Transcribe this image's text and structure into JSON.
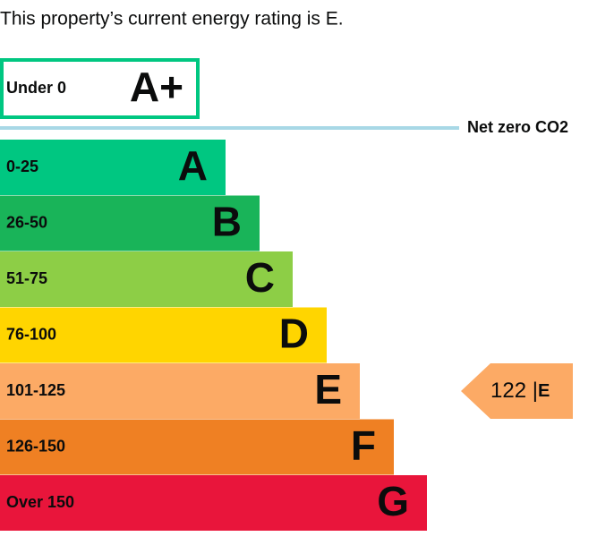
{
  "intro": "This property’s current energy rating is E.",
  "top_band": {
    "range": "Under 0",
    "letter": "A+"
  },
  "net_zero": "Net zero CO2",
  "bands": [
    {
      "range": "0-25",
      "letter": "A"
    },
    {
      "range": "26-50",
      "letter": "B"
    },
    {
      "range": "51-75",
      "letter": "C"
    },
    {
      "range": "76-100",
      "letter": "D"
    },
    {
      "range": "101-125",
      "letter": "E"
    },
    {
      "range": "126-150",
      "letter": "F"
    },
    {
      "range": "Over 150",
      "letter": "G"
    }
  ],
  "current": {
    "score": 122,
    "letter": "E"
  }
}
